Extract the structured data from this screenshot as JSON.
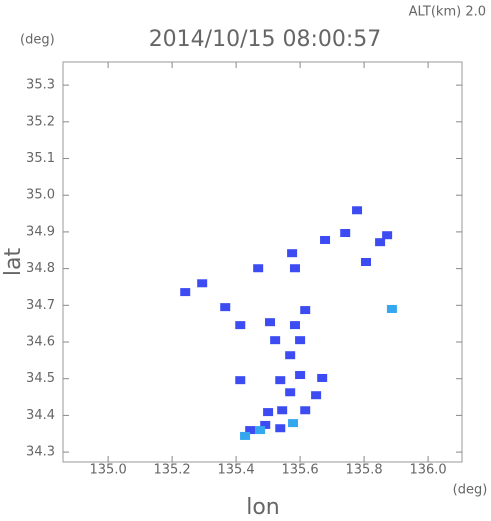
{
  "chart_data": {
    "type": "scatter",
    "title": "2014/10/15 08:00:57",
    "subtitle": "ALT(km) 2.0",
    "y_unit": "(deg)",
    "x_unit": "(deg)",
    "xlabel": "lon",
    "ylabel": "lat",
    "xlim": [
      134.859,
      136.106
    ],
    "ylim": [
      34.273,
      35.363
    ],
    "xticks": [
      {
        "value": 135,
        "label": "135.0"
      },
      {
        "value": 135.2,
        "label": "135.2"
      },
      {
        "value": 135.4,
        "label": "135.4"
      },
      {
        "value": 135.6,
        "label": "135.6"
      },
      {
        "value": 135.8,
        "label": "135.8"
      },
      {
        "value": 136,
        "label": "136.0"
      }
    ],
    "yticks": [
      34.3,
      34.4,
      34.5,
      34.6,
      34.7,
      34.8,
      34.9,
      {
        "value": 35,
        "label": "35.0"
      },
      35.1,
      35.2,
      35.3
    ],
    "series": [
      {
        "color": "#3c4cf2",
        "x": [
          135.778,
          135.741,
          135.85,
          135.872,
          135.806,
          135.678,
          135.584,
          135.575,
          135.469,
          135.241,
          135.294,
          135.366,
          135.616,
          135.413,
          135.506,
          135.584,
          135.522,
          135.6,
          135.569,
          135.538,
          135.6,
          135.669,
          135.569,
          135.65,
          135.544,
          135.616,
          135.5,
          135.491,
          135.444,
          135.538,
          135.413
        ],
        "y": [
          34.959,
          34.897,
          34.872,
          34.891,
          34.818,
          34.878,
          34.801,
          34.842,
          34.801,
          34.736,
          34.76,
          34.695,
          34.687,
          34.646,
          34.654,
          34.646,
          34.605,
          34.605,
          34.564,
          34.496,
          34.51,
          34.502,
          34.463,
          34.455,
          34.414,
          34.414,
          34.409,
          34.374,
          34.36,
          34.365,
          34.496
        ]
      },
      {
        "color": "#35a7f0",
        "x": [
          135.428,
          135.475,
          135.578,
          135.887
        ],
        "y": [
          34.344,
          34.36,
          34.379,
          34.69
        ]
      }
    ]
  }
}
